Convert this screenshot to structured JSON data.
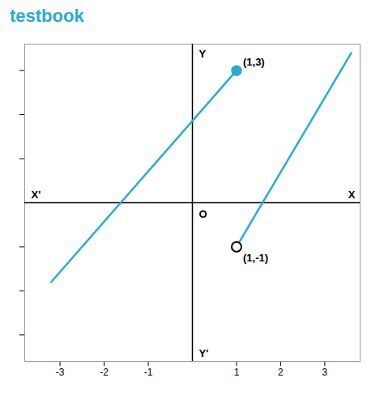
{
  "chart_data": {
    "type": "line",
    "title": "testbook",
    "xlim": [
      -3.8,
      3.8
    ],
    "ylim": [
      -3.6,
      3.6
    ],
    "xticks": [
      -3,
      -2,
      -1,
      1,
      2,
      3
    ],
    "yticks": [
      -3,
      -2,
      -1,
      1,
      2,
      3
    ],
    "tick_labels": "x",
    "grid": false,
    "series": [
      {
        "type": "line",
        "x": [
          -3.2,
          1.0
        ],
        "values": [
          -1.8,
          3.0
        ],
        "color": "#29ABD4"
      },
      {
        "type": "line",
        "x": [
          1.0,
          3.6
        ],
        "values": [
          -1.0,
          3.4
        ],
        "color": "#29ABD4"
      },
      {
        "type": "scatter",
        "x": [
          1
        ],
        "values": [
          3
        ],
        "color": "#29ABD4",
        "marker": "filled"
      },
      {
        "type": "scatter",
        "x": [
          1
        ],
        "values": [
          -1
        ],
        "color": "#000000",
        "marker": "open"
      }
    ],
    "annotations": [
      {
        "text": "(1,3)",
        "x": 1,
        "y": 3
      },
      {
        "text": "(1,-1)",
        "x": 1,
        "y": -1
      },
      {
        "text": "O",
        "x": 0,
        "y": 0
      },
      {
        "text": "X",
        "x": 3.8,
        "y": 0
      },
      {
        "text": "X'",
        "x": -3.8,
        "y": 0
      },
      {
        "text": "Y",
        "x": 0,
        "y": 3.6
      },
      {
        "text": "Y'",
        "x": 0,
        "y": -3.6
      }
    ]
  }
}
